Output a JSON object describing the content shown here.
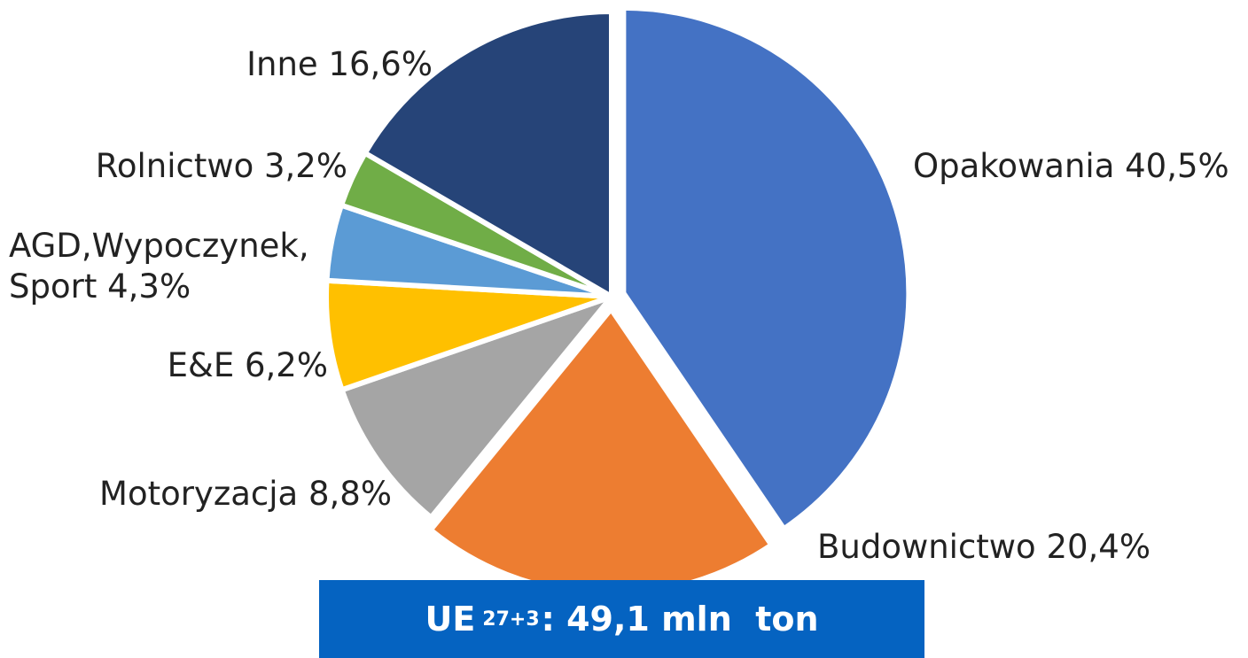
{
  "chart_data": {
    "type": "pie",
    "categories": [
      "Opakowania",
      "Budownictwo",
      "Motoryzacja",
      "E&E",
      "AGD,Wypoczynek, Sport",
      "Rolnictwo",
      "Inne"
    ],
    "values": [
      40.5,
      20.4,
      8.8,
      6.2,
      4.3,
      3.2,
      16.6
    ],
    "value_labels": [
      "40,5%",
      "20,4%",
      "8,8%",
      "6,2%",
      "4,3%",
      "3,2%",
      "16,6%"
    ],
    "colors": [
      "#4472c4",
      "#ed7d31",
      "#a5a5a5",
      "#ffc000",
      "#5b9bd5",
      "#70ad47",
      "#264478"
    ],
    "banner": {
      "prefix": "UE",
      "subscript": "27+3",
      "text": ": 49,1 mln  ton"
    }
  }
}
